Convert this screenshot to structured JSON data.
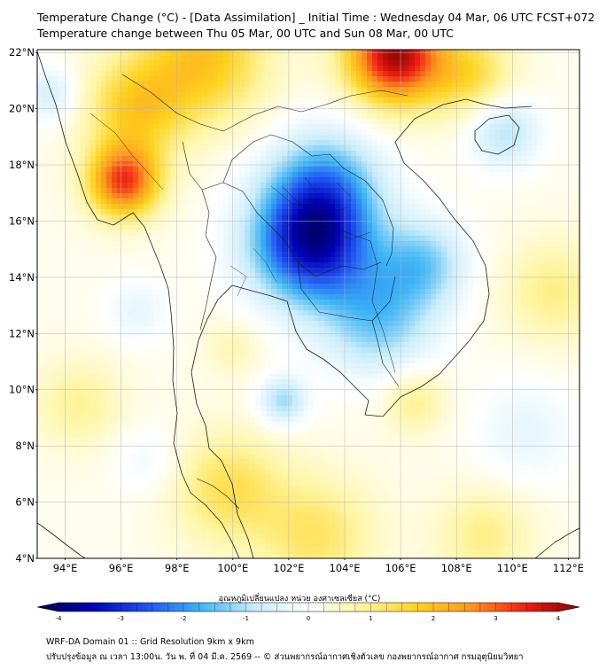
{
  "header": {
    "title": "Temperature Change (°C) - [Data Assimilation] _ Initial Time : Wednesday 04 Mar, 06 UTC FCST+072",
    "subtitle": "Temperature change between Thu 05 Mar, 00 UTC and Sun 08 Mar, 00 UTC"
  },
  "map": {
    "lat_labels": [
      "22°N",
      "20°N",
      "18°N",
      "16°N",
      "14°N",
      "12°N",
      "10°N",
      "8°N",
      "6°N",
      "4°N"
    ],
    "lon_labels": [
      "94°E",
      "96°E",
      "98°E",
      "100°E",
      "102°E",
      "104°E",
      "106°E",
      "108°E",
      "110°E",
      "112°E"
    ],
    "lat_values": [
      22,
      20,
      18,
      16,
      14,
      12,
      10,
      8,
      6,
      4
    ],
    "lon_values": [
      94,
      96,
      98,
      100,
      102,
      104,
      106,
      108,
      110,
      112
    ],
    "extent": {
      "lon_min": 93.0,
      "lon_max": 112.4,
      "lat_min": 4.0,
      "lat_max": 22.1
    },
    "anomalies": [
      {
        "name": "cooling-core-thailand-cambodia",
        "lon": 102.8,
        "lat": 15.2,
        "value": -3.2,
        "spread": 1.5
      },
      {
        "name": "cooling-laos-north",
        "lon": 103.3,
        "lat": 17.3,
        "value": -1.6,
        "spread": 1.4
      },
      {
        "name": "cooling-cambodia-south",
        "lon": 105.2,
        "lat": 12.5,
        "value": -1.4,
        "spread": 1.4
      },
      {
        "name": "cooling-vietnam-central",
        "lon": 106.8,
        "lat": 14.5,
        "value": -1.3,
        "spread": 1.1
      },
      {
        "name": "cooling-hainan",
        "lon": 109.7,
        "lat": 19.2,
        "value": -1.1,
        "spread": 0.9
      },
      {
        "name": "cooling-gulf-of-thailand",
        "lon": 101.8,
        "lat": 9.6,
        "value": -1.2,
        "spread": 0.6
      },
      {
        "name": "cooling-andaman-north",
        "lon": 93.5,
        "lat": 20.5,
        "value": -0.8,
        "spread": 0.7
      },
      {
        "name": "cooling-andaman-sea",
        "lon": 96.6,
        "lat": 12.8,
        "value": -0.5,
        "spread": 0.8
      },
      {
        "name": "cooling-malay-sea",
        "lon": 97.0,
        "lat": 7.5,
        "value": -0.4,
        "spread": 0.9
      },
      {
        "name": "cooling-south-china-sea",
        "lon": 110.5,
        "lat": 8.5,
        "value": -0.5,
        "spread": 1.3
      },
      {
        "name": "warming-myanmar-west",
        "lon": 96.1,
        "lat": 17.4,
        "value": 2.8,
        "spread": 0.9
      },
      {
        "name": "warming-north-border",
        "lon": 105.8,
        "lat": 21.9,
        "value": 3.6,
        "spread": 1.2
      },
      {
        "name": "warming-north-band",
        "lon": 99.0,
        "lat": 21.8,
        "value": 1.6,
        "spread": 1.6
      },
      {
        "name": "warming-gulf-of-tonkin",
        "lon": 108.5,
        "lat": 21.2,
        "value": 1.2,
        "spread": 1.1
      },
      {
        "name": "warming-myanmar-central",
        "lon": 96.5,
        "lat": 20.0,
        "value": 1.4,
        "spread": 1.3
      },
      {
        "name": "warming-malay-peninsula",
        "lon": 99.8,
        "lat": 6.5,
        "value": 1.1,
        "spread": 1.4
      },
      {
        "name": "warming-southern-sea",
        "lon": 103.0,
        "lat": 4.8,
        "value": 1.0,
        "spread": 1.5
      },
      {
        "name": "warming-andaman",
        "lon": 94.5,
        "lat": 9.5,
        "value": 0.7,
        "spread": 1.1
      },
      {
        "name": "warming-mekong-delta",
        "lon": 106.5,
        "lat": 9.6,
        "value": 0.8,
        "spread": 0.8
      },
      {
        "name": "warming-east-sea",
        "lon": 111.5,
        "lat": 13.5,
        "value": 0.8,
        "spread": 1.3
      },
      {
        "name": "warming-south-east",
        "lon": 109.0,
        "lat": 4.8,
        "value": 0.8,
        "spread": 1.2
      },
      {
        "name": "warming-gulf-west",
        "lon": 100.0,
        "lat": 11.5,
        "value": 0.5,
        "spread": 0.7
      }
    ]
  },
  "colorbar": {
    "label": "อุณหภูมิเปลี่ยนแปลง หน่วย องศาเซลเซียส (°C)",
    "min": -4,
    "max": 4,
    "tick_labels": [
      "-4",
      "-3",
      "-2",
      "-1",
      "0",
      "1",
      "2",
      "3",
      "4"
    ],
    "tick_values": [
      -4,
      -3,
      -2,
      -1,
      0,
      1,
      2,
      3,
      4
    ],
    "stops": [
      "#000046",
      "#0000b4",
      "#1e50f0",
      "#3cb4f5",
      "#c8ecfa",
      "#ffffff",
      "#fff5a0",
      "#ffd21e",
      "#ff961e",
      "#f01e14",
      "#820000"
    ]
  },
  "footer": {
    "line1": "WRF-DA Domain 01 :: Grid Resolution 9km x 9km",
    "line2": "ปรับปรุงข้อมูล ณ เวลา 13:00น. วัน พ. ที่ 04 มี.ค. 2569 -- © ส่วนพยากรณ์อากาศเชิงตัวเลข กองพยากรณ์อากาศ กรมอุตุนิยมวิทยา"
  }
}
